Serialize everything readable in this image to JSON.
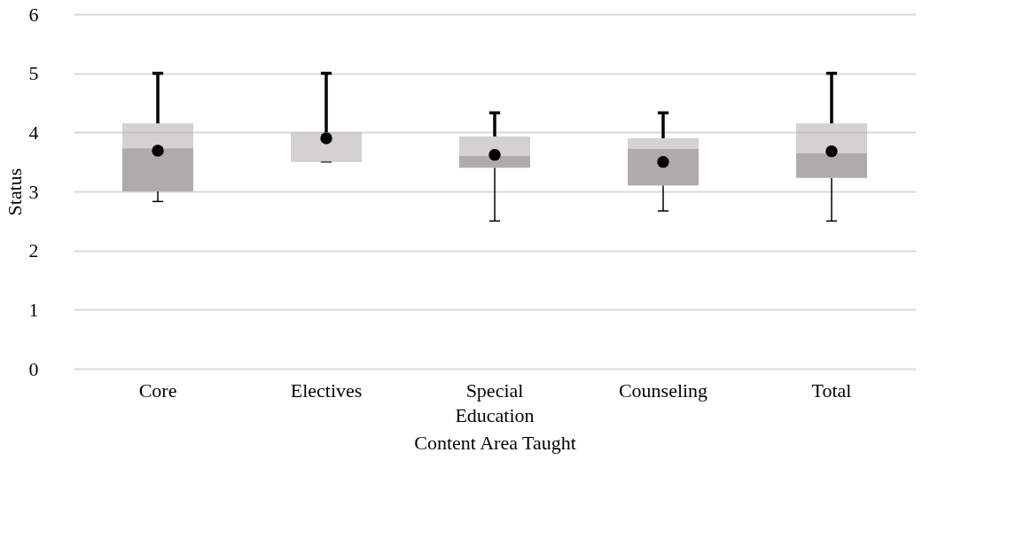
{
  "chart_data": {
    "type": "box",
    "xlabel": "Content Area Taught",
    "ylabel": "Status",
    "categories": [
      "Core",
      "Electives",
      "Special Education",
      "Counseling",
      "Total"
    ],
    "ylim": [
      0,
      6
    ],
    "yticks": [
      0,
      1,
      2,
      3,
      4,
      5,
      6
    ],
    "grid": "y",
    "marker": "circle",
    "series": [
      {
        "color": "#afabab",
        "boxes": [
          {
            "low": 2.83,
            "q1": 3.0,
            "median": 3.73,
            "q3": 4.15,
            "high": 5,
            "mean": 3.69
          },
          {
            "low": 3.5,
            "q1": 3.5,
            "median": 3.5,
            "q3": 4.0,
            "high": 5,
            "mean": 3.9
          },
          {
            "low": 2.5,
            "q1": 3.4,
            "median": 3.6,
            "q3": 3.93,
            "high": 4.33,
            "mean": 3.62
          },
          {
            "low": 2.67,
            "q1": 3.1,
            "median": 3.72,
            "q3": 3.9,
            "high": 4.33,
            "mean": 3.5
          },
          {
            "low": 2.5,
            "q1": 3.23,
            "median": 3.65,
            "q3": 4.15,
            "high": 5,
            "mean": 3.68
          }
        ]
      }
    ]
  }
}
